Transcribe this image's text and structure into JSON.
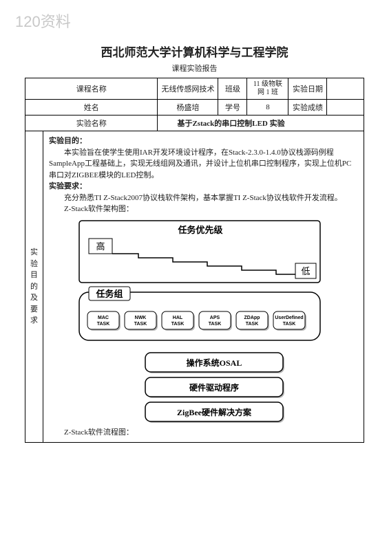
{
  "watermark": "120资料",
  "header": {
    "title": "西北师范大学计算机科学与工程学院",
    "subtitle": "课程实验报告"
  },
  "meta": {
    "row1": {
      "l1": "课程名称",
      "v1": "无线传感网技术",
      "l2": "班级",
      "v2": "11 级物联\n网 1 班",
      "l3": "实验日期",
      "v3": ""
    },
    "row2": {
      "l1": "姓名",
      "v1": "杨盛培",
      "l2": "学号",
      "v2": "8",
      "l3": "实验成绩",
      "v3": ""
    },
    "row3": {
      "l1": "实验名称",
      "v1": "基于Zstack的串口控制LED 实验"
    }
  },
  "sidebar_label": "实\n验\n目\n的\n及\n要\n求",
  "body": {
    "goal_head": "实验目的：",
    "goal_p1": "本实验旨在使学生使用IAR开发环境设计程序，在Stack-2.3.0-1.4.0协议栈源码例程SampleApp工程基础上，实现无线组网及通讯，并设计上位机串口控制程序，实现上位机PC串口对ZIGBEE模块的LED控制。",
    "req_head": "实验要求：",
    "req_p1": "充分熟悉TI Z-Stack2007协议栈软件架构，基本掌握TI Z-Stack协议栈软件开发流程。",
    "arch_label": "Z-Stack软件架构图：",
    "flow_label": "Z-Stack软件流程图："
  },
  "diagram": {
    "priority_title": "任务优先级",
    "high": "高",
    "low": "低",
    "group_title": "任务组",
    "tasks": [
      "MAC TASK",
      "NWK TASK",
      "HAL TASK",
      "APS TASK",
      "ZDApp TASK",
      "UserDefined TASK"
    ],
    "layers": [
      "操作系统OSAL",
      "硬件驱动程序",
      "ZigBee硬件解决方案"
    ],
    "colors": {
      "border": "#000000",
      "fill_task": "#ffffff",
      "fill_layer": "#ffffff",
      "fill_group": "#ffffff",
      "shadow": "#b5b5b5"
    },
    "fonts": {
      "priority_title_size": 13,
      "hl_size": 13,
      "group_title_size": 13,
      "task_size": 7,
      "layer_size": 12
    }
  }
}
